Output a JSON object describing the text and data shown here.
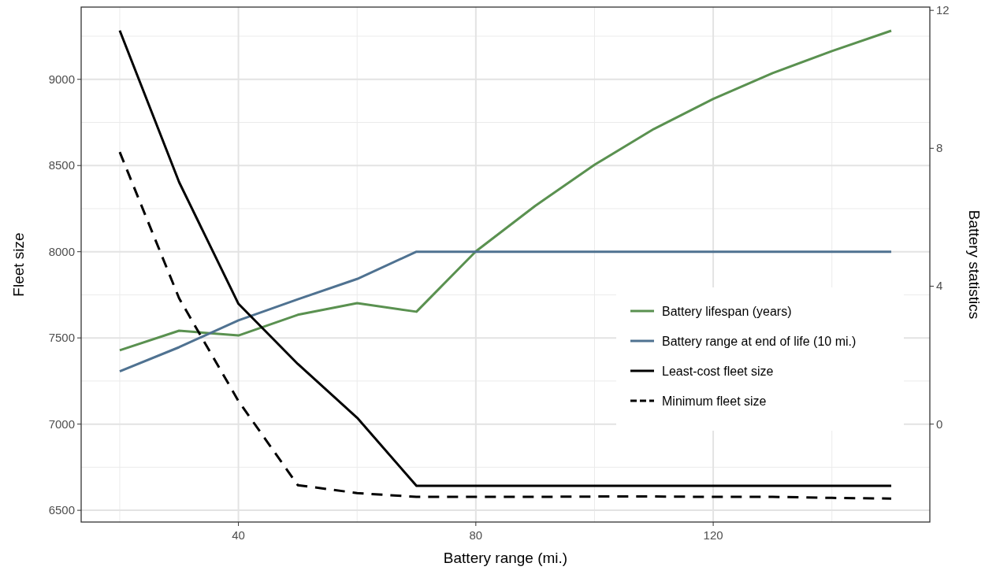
{
  "chart_data": {
    "type": "line",
    "xlabel": "Battery range (mi.)",
    "ylabel": "Fleet size",
    "y2label": "Battery statistics",
    "x": [
      20,
      30,
      40,
      50,
      60,
      70,
      80,
      90,
      100,
      110,
      120,
      130,
      140,
      150
    ],
    "xlim": [
      13.5,
      156.5
    ],
    "xticks": [
      40,
      80,
      120
    ],
    "ylim": [
      6432,
      9419
    ],
    "yticks": [
      6500,
      7000,
      7500,
      8000,
      8500,
      9000
    ],
    "y2lim": [
      -2.84,
      12.095
    ],
    "y2ticks": [
      0,
      4,
      8,
      12
    ],
    "grid": true,
    "legend": "right",
    "line_style": "solid",
    "marker": "none",
    "series": [
      {
        "name": "Battery lifespan (years)",
        "color": "#5a9150",
        "axis": "y2",
        "values": [
          2.14,
          2.71,
          2.57,
          3.17,
          3.51,
          3.26,
          5.01,
          6.33,
          7.52,
          8.56,
          9.43,
          10.18,
          10.82,
          11.41
        ]
      },
      {
        "name": "Battery range at end of life (10 mi.)",
        "color": "#4f7291",
        "axis": "y2",
        "values": [
          1.53,
          2.23,
          3.01,
          3.62,
          4.21,
          5,
          5,
          5,
          5,
          5,
          5,
          5,
          5,
          5
        ]
      },
      {
        "name": "Least-cost fleet size",
        "color": "#000000",
        "values": [
          9283,
          8404,
          7698,
          7349,
          7037,
          6642,
          6642,
          6642,
          6642,
          6642,
          6642,
          6642,
          6642,
          6642
        ]
      },
      {
        "name": "Minimum fleet size",
        "color": "#000000",
        "line_style": "dashed",
        "values": [
          8578,
          7730,
          7134,
          6646,
          6600,
          6578,
          6578,
          6578,
          6580,
          6580,
          6578,
          6578,
          6572,
          6568
        ]
      }
    ]
  }
}
